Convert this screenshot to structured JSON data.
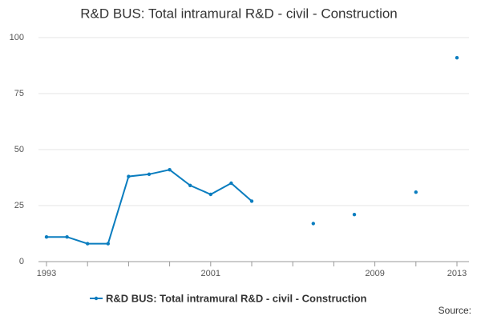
{
  "chart_data": {
    "type": "line",
    "title": "R&D BUS: Total intramural R&D - civil - Construction",
    "x": [
      1993,
      1994,
      1995,
      1996,
      1997,
      1998,
      1999,
      2000,
      2001,
      2002,
      2003,
      2004,
      2005,
      2006,
      2007,
      2008,
      2009,
      2010,
      2011,
      2012,
      2013
    ],
    "series": [
      {
        "name": "R&D BUS: Total intramural R&D - civil - Construction",
        "color": "#0a7dbf",
        "values": [
          11,
          11,
          8,
          8,
          38,
          39,
          41,
          34,
          30,
          35,
          27,
          null,
          null,
          17,
          null,
          21,
          null,
          null,
          31,
          null,
          91
        ]
      }
    ],
    "xlim": [
      1993,
      2013
    ],
    "xticks": [
      1993,
      2001,
      2009,
      2013
    ],
    "xminorticks": [
      1995,
      1997,
      1999,
      2003,
      2005,
      2007,
      2011
    ],
    "ylim": [
      0,
      100
    ],
    "yticks": [
      0,
      25,
      50,
      75,
      100
    ],
    "grid": true,
    "legend": "bottom",
    "source": "Source:"
  }
}
